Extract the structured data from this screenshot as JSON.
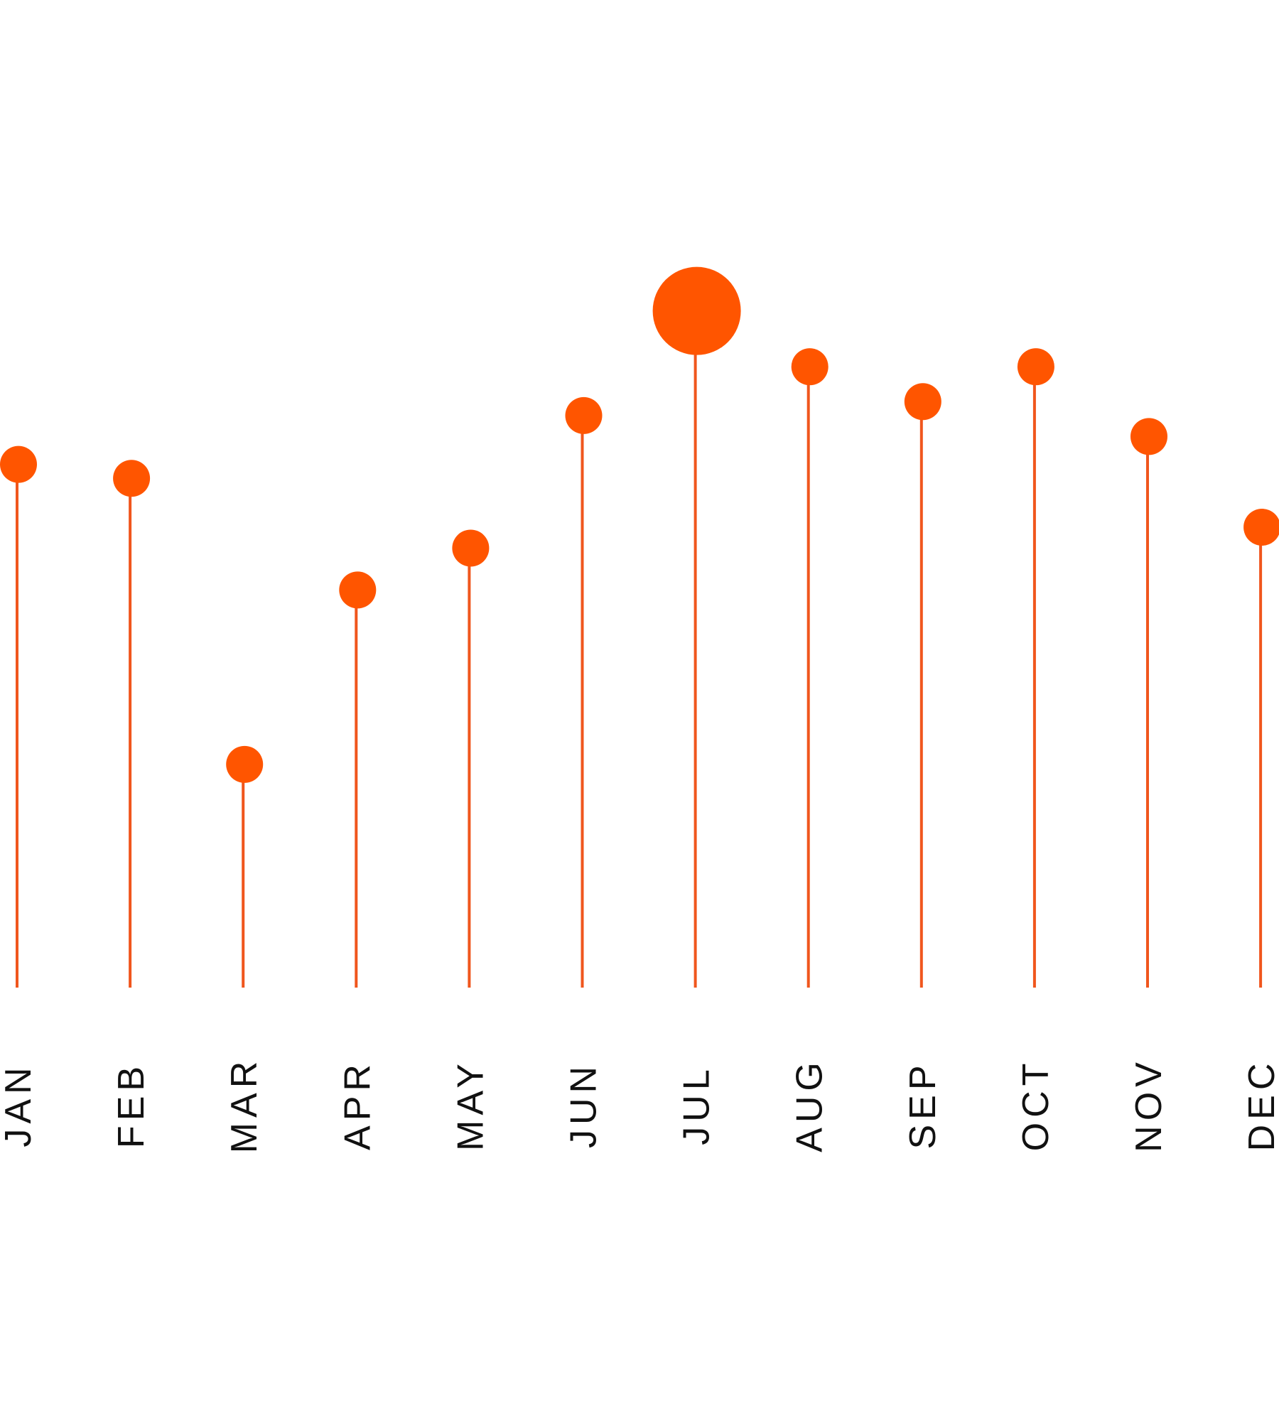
{
  "chart_data": {
    "type": "lollipop",
    "categories": [
      "JAN",
      "FEB",
      "MAR",
      "APR",
      "MAY",
      "JUN",
      "JUL",
      "AUG",
      "SEP",
      "OCT",
      "NOV",
      "DEC"
    ],
    "values": [
      75,
      73,
      32,
      57,
      63,
      82,
      97,
      89,
      84,
      89,
      79,
      66
    ],
    "highlight": "JUL",
    "ylim": [
      0,
      110
    ],
    "grid": false,
    "legend": "none",
    "colors": {
      "stem": "#F0561D",
      "dot": "#FF5500",
      "label": "#111111"
    }
  }
}
